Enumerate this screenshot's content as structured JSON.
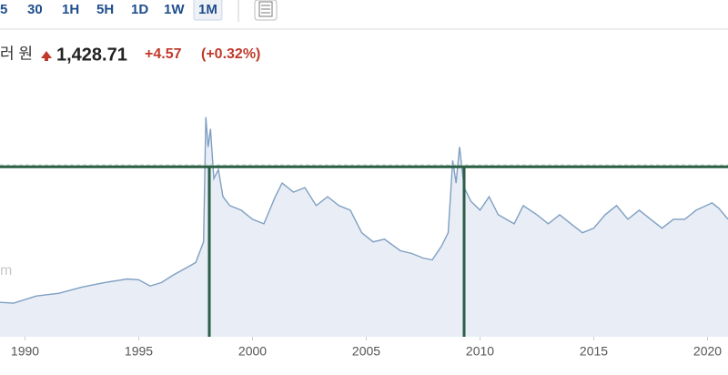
{
  "toolbar": {
    "intervals": [
      "5",
      "30",
      "1H",
      "5H",
      "1D",
      "1W",
      "1M"
    ],
    "selected": 6
  },
  "quote": {
    "name": "러 원",
    "price": "1,428.71",
    "change": "+4.57",
    "change_percent": "(+0.32%)"
  },
  "chart_data": {
    "type": "area",
    "watermark": "m",
    "color": "#7f9fc2",
    "fill": "#e9eef6",
    "x": [
      1988.9,
      1989.5,
      1990.5,
      1991.5,
      1992.5,
      1993.5,
      1994.5,
      1995.0,
      1995.5,
      1996.0,
      1996.5,
      1997.0,
      1997.5,
      1997.85,
      1997.95,
      1998.05,
      1998.15,
      1998.3,
      1998.5,
      1998.7,
      1999.0,
      1999.5,
      2000.0,
      2000.5,
      2001.0,
      2001.3,
      2001.8,
      2002.3,
      2002.8,
      2003.3,
      2003.8,
      2004.3,
      2004.8,
      2005.3,
      2005.8,
      2006.5,
      2007.0,
      2007.5,
      2007.9,
      2008.3,
      2008.6,
      2008.8,
      2008.95,
      2009.1,
      2009.3,
      2009.6,
      2010.0,
      2010.4,
      2010.8,
      2011.5,
      2011.9,
      2012.5,
      2013.0,
      2013.5,
      2014.0,
      2014.5,
      2015.0,
      2015.5,
      2016.0,
      2016.5,
      2017.0,
      2017.5,
      2018.0,
      2018.5,
      2019.0,
      2019.5,
      2020.2,
      2020.5,
      2020.9
    ],
    "values": [
      648,
      643,
      686,
      702,
      739,
      766,
      787,
      782,
      745,
      766,
      809,
      846,
      884,
      1007,
      1747,
      1570,
      1677,
      1382,
      1436,
      1275,
      1222,
      1195,
      1141,
      1114,
      1275,
      1356,
      1302,
      1329,
      1222,
      1275,
      1222,
      1195,
      1061,
      1007,
      1023,
      954,
      938,
      911,
      900,
      980,
      1061,
      1490,
      1356,
      1570,
      1329,
      1248,
      1195,
      1275,
      1168,
      1114,
      1222,
      1168,
      1114,
      1168,
      1114,
      1061,
      1088,
      1168,
      1222,
      1141,
      1195,
      1141,
      1088,
      1141,
      1141,
      1195,
      1238,
      1206,
      1141
    ],
    "xlim": [
      1988.9,
      2020.9
    ],
    "ylim": [
      444,
      1945
    ],
    "xticks": [
      1990,
      1995,
      2000,
      2005,
      2010,
      2015,
      2020
    ],
    "reference_color": "#2b5e45",
    "horizontal_line": 1452,
    "vertical_lines": [
      1998.1,
      2009.3
    ]
  }
}
